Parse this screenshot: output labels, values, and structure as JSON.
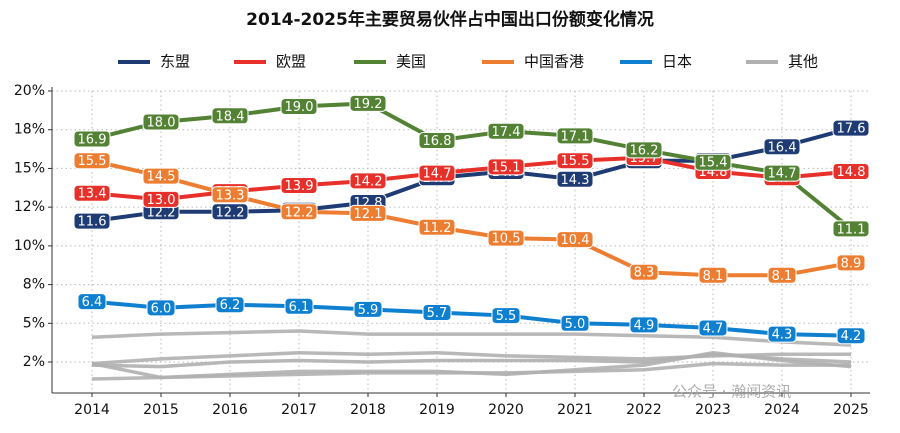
{
  "chart_data": {
    "type": "line",
    "title": "2014-2025年主要贸易伙伴占中国出口份额变化情况",
    "categories": [
      "2014",
      "2015",
      "2016",
      "2017",
      "2018",
      "2019",
      "2020",
      "2021",
      "2022",
      "2023",
      "2024",
      "2025"
    ],
    "series": [
      {
        "name": "东盟",
        "color": "#1f3b73",
        "values": [
          11.6,
          12.2,
          12.2,
          12.3,
          12.8,
          14.4,
          14.8,
          14.3,
          15.5,
          15.5,
          16.4,
          17.6
        ],
        "value_labels": [
          "11.6",
          "12.2",
          "12.2",
          "12.3",
          "12.8",
          "14.4",
          "14.8",
          "14.3",
          "15.5",
          "15.5",
          "16.4",
          "17.6"
        ]
      },
      {
        "name": "欧盟",
        "color": "#e8302a",
        "values": [
          13.4,
          13.0,
          13.5,
          13.9,
          14.2,
          14.7,
          15.1,
          15.5,
          15.7,
          14.8,
          14.4,
          14.8
        ],
        "value_labels": [
          "13.4",
          "13.0",
          "13.5",
          "13.9",
          "14.2",
          "14.7",
          "15.1",
          "15.5",
          "15.7",
          "14.8",
          "14.4",
          "14.8"
        ]
      },
      {
        "name": "美国",
        "color": "#548235",
        "values": [
          16.9,
          18.0,
          18.4,
          19.0,
          19.2,
          16.8,
          17.4,
          17.1,
          16.2,
          15.4,
          14.7,
          11.1
        ],
        "value_labels": [
          "16.9",
          "18.0",
          "18.4",
          "19.0",
          "19.2",
          "16.8",
          "17.4",
          "17.1",
          "16.2",
          "15.4",
          "14.7",
          "11.1"
        ]
      },
      {
        "name": "中国香港",
        "color": "#ed7d31",
        "values": [
          15.5,
          14.5,
          13.3,
          12.2,
          12.1,
          11.2,
          10.5,
          10.4,
          8.3,
          8.1,
          8.1,
          8.9
        ],
        "value_labels": [
          "15.5",
          "14.5",
          "13.3",
          "12.2",
          "12.1",
          "11.2",
          "10.5",
          "10.4",
          "8.3",
          "8.1",
          "8.1",
          "8.9"
        ]
      },
      {
        "name": "日本",
        "color": "#0f7fcf",
        "values": [
          6.4,
          6.0,
          6.2,
          6.1,
          5.9,
          5.7,
          5.5,
          5.0,
          4.9,
          4.7,
          4.3,
          4.2
        ],
        "value_labels": [
          "6.4",
          "6.0",
          "6.2",
          "6.1",
          "5.9",
          "5.7",
          "5.5",
          "5.0",
          "4.9",
          "4.7",
          "4.3",
          "4.2"
        ]
      },
      {
        "name": "其他",
        "color": "#b0b0b0",
        "values": [
          4.1,
          4.3,
          4.4,
          4.5,
          4.3,
          4.3,
          4.3,
          4.3,
          4.2,
          4.1,
          3.8,
          3.6
        ]
      },
      {
        "color": "#b0b0b0",
        "values": [
          2.4,
          2.7,
          2.9,
          3.1,
          3.0,
          3.1,
          2.9,
          2.8,
          2.7,
          2.9,
          3.0,
          3.0
        ]
      },
      {
        "color": "#b0b0b0",
        "values": [
          2.3,
          2.2,
          2.5,
          2.6,
          2.5,
          2.6,
          2.6,
          2.6,
          2.5,
          3.0,
          2.7,
          2.5
        ]
      },
      {
        "color": "#b0b0b0",
        "values": [
          2.4,
          1.5,
          1.7,
          1.9,
          1.9,
          1.9,
          1.7,
          2.0,
          2.3,
          3.1,
          2.6,
          2.2
        ]
      },
      {
        "color": "#b0b0b0",
        "values": [
          1.4,
          1.5,
          1.6,
          1.7,
          1.8,
          1.8,
          1.8,
          1.9,
          2.0,
          2.4,
          2.3,
          2.3
        ]
      }
    ],
    "ylim": [
      0.5,
      20
    ],
    "yticks": [
      {
        "value": 2.5,
        "label": "2%"
      },
      {
        "value": 5,
        "label": "5%"
      },
      {
        "value": 7.5,
        "label": "8%"
      },
      {
        "value": 10,
        "label": "10%"
      },
      {
        "value": 12.5,
        "label": "12%"
      },
      {
        "value": 15,
        "label": "15%"
      },
      {
        "value": 17.5,
        "label": "18%"
      },
      {
        "value": 20,
        "label": "20%"
      }
    ],
    "grid": true,
    "legend": "top",
    "watermark": "公众号 · 瀚闻资讯"
  }
}
